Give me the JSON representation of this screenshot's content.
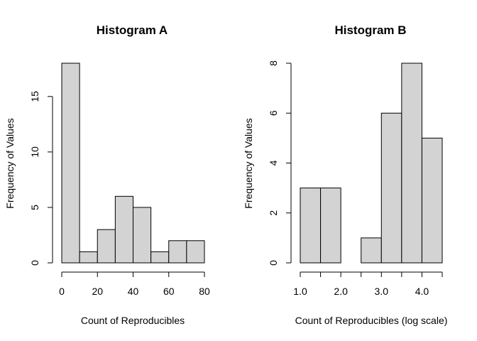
{
  "chart_data": [
    {
      "type": "histogram",
      "title": "Histogram A",
      "xlabel": "Count of Reproducibles",
      "ylabel": "Frequency of Values",
      "bin_edges": [
        0,
        10,
        20,
        30,
        40,
        50,
        60,
        70,
        80
      ],
      "values": [
        18,
        1,
        3,
        6,
        5,
        1,
        2,
        2
      ],
      "xlim": [
        0,
        80
      ],
      "ylim": [
        0,
        18
      ],
      "x_ticks": [
        0,
        20,
        40,
        60,
        80
      ],
      "x_tick_labels": [
        "0",
        "20",
        "40",
        "60",
        "80"
      ],
      "y_ticks": [
        0,
        5,
        10,
        15
      ],
      "y_tick_labels": [
        "0",
        "5",
        "10",
        "15"
      ],
      "bar_color": "#d3d3d3",
      "grid": false
    },
    {
      "type": "histogram",
      "title": "Histogram B",
      "xlabel": "Count of Reproducibles (log scale)",
      "ylabel": "Frequency of Values",
      "bin_edges": [
        1.0,
        1.5,
        2.0,
        2.5,
        3.0,
        3.5,
        4.0,
        4.5
      ],
      "values": [
        3,
        3,
        0,
        1,
        6,
        8,
        5
      ],
      "xlim": [
        1.0,
        4.5
      ],
      "ylim": [
        0,
        8
      ],
      "x_ticks": [
        1.0,
        1.5,
        2.0,
        2.5,
        3.0,
        3.5,
        4.0,
        4.5
      ],
      "x_tick_labels": [
        "1.0",
        "",
        "2.0",
        "",
        "3.0",
        "",
        "4.0",
        ""
      ],
      "y_ticks": [
        0,
        2,
        4,
        6,
        8
      ],
      "y_tick_labels": [
        "0",
        "2",
        "4",
        "6",
        "8"
      ],
      "bar_color": "#d3d3d3",
      "grid": false
    }
  ]
}
